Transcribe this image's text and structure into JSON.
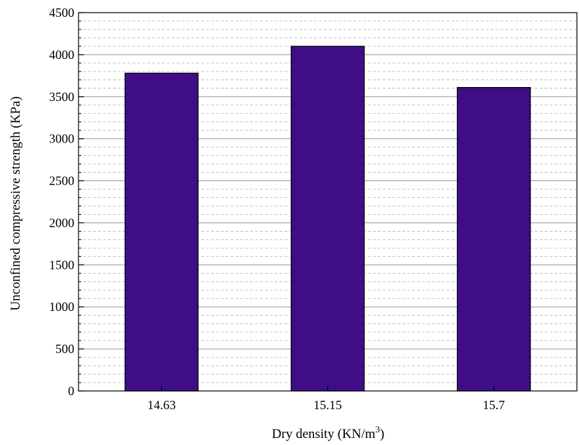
{
  "chart_data": {
    "type": "bar",
    "categories": [
      "14.63",
      "15.15",
      "15.7"
    ],
    "values": [
      3780,
      4100,
      3610
    ],
    "xlabel": "Dry density (KN/m",
    "xlabel_superscript": "3",
    "xlabel_suffix": ")",
    "ylabel": "Unconfined compressive strength (KPa)",
    "ylim": [
      0,
      4500
    ],
    "yticks": [
      0,
      500,
      1000,
      1500,
      2000,
      2500,
      3000,
      3500,
      4000,
      4500
    ],
    "minor_grid_step": 100,
    "grid": true,
    "bar_color": "#3f0d86",
    "grid_color": "#b5b5b5"
  }
}
